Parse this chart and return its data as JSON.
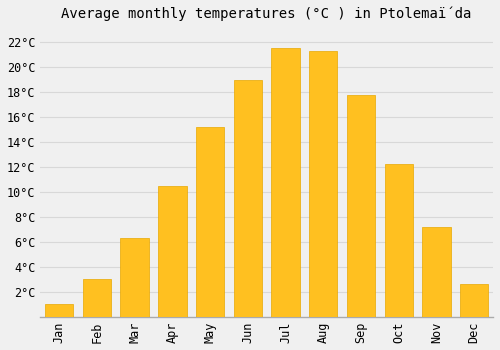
{
  "months": [
    "Jan",
    "Feb",
    "Mar",
    "Apr",
    "May",
    "Jun",
    "Jul",
    "Aug",
    "Sep",
    "Oct",
    "Nov",
    "Dec"
  ],
  "values": [
    1.0,
    3.0,
    6.3,
    10.5,
    15.2,
    19.0,
    21.5,
    21.3,
    17.8,
    12.2,
    7.2,
    2.6
  ],
  "bar_color": "#FFC020",
  "bar_edge_color": "#E8A800",
  "title": "Average monthly temperatures (°C ) in Ptolemaḯda",
  "ylim": [
    0,
    23
  ],
  "yticks": [
    2,
    4,
    6,
    8,
    10,
    12,
    14,
    16,
    18,
    20,
    22
  ],
  "background_color": "#f0f0f0",
  "grid_color": "#d8d8d8",
  "title_fontsize": 10,
  "tick_fontsize": 8.5
}
